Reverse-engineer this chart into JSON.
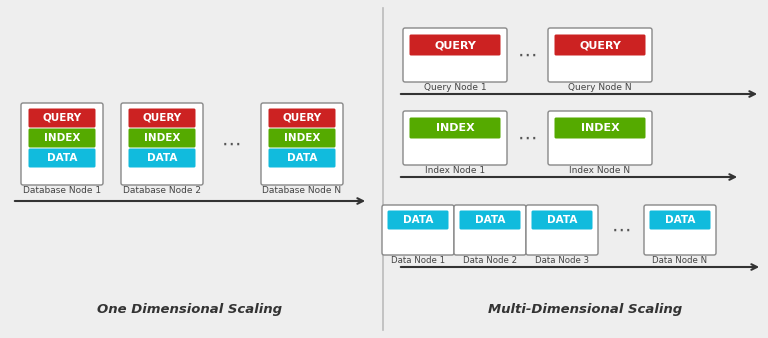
{
  "bg_color": "#eeeeee",
  "query_color": "#cc2222",
  "index_color": "#55aa00",
  "data_color": "#11bbdd",
  "text_white": "#ffffff",
  "text_dark": "#444444",
  "divider_color": "#bbbbbb",
  "left_title": "One Dimensional Scaling",
  "right_title": "Multi-Dimensional Scaling",
  "left_nodes": [
    "Database Node 1",
    "Database Node 2",
    "Database Node N"
  ],
  "right_query_nodes": [
    "Query Node 1",
    "Query Node N"
  ],
  "right_index_nodes": [
    "Index Node 1",
    "Index Node N"
  ],
  "right_data_nodes": [
    "Data Node 1",
    "Data Node 2",
    "Data Node 3",
    "Data Node N"
  ]
}
